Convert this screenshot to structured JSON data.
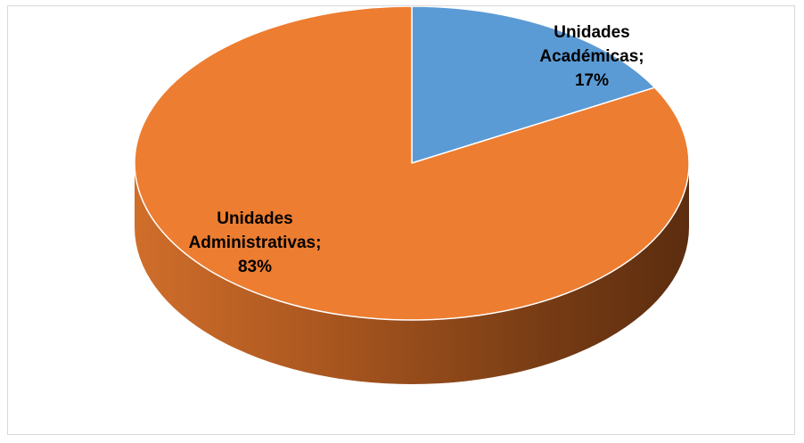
{
  "chart_data": {
    "type": "pie",
    "style": "3d",
    "title": "",
    "legend": "none",
    "start_angle_deg": 0,
    "direction": "clockwise",
    "slices": [
      {
        "label_lines": [
          "Unidades",
          "Académicas;",
          "17%"
        ],
        "category": "Unidades Académicas",
        "value": 17,
        "color": "#5b9bd5"
      },
      {
        "label_lines": [
          "Unidades",
          "Administrativas;",
          "83%"
        ],
        "category": "Unidades Administrativas",
        "value": 83,
        "color": "#ed7d31"
      }
    ]
  }
}
